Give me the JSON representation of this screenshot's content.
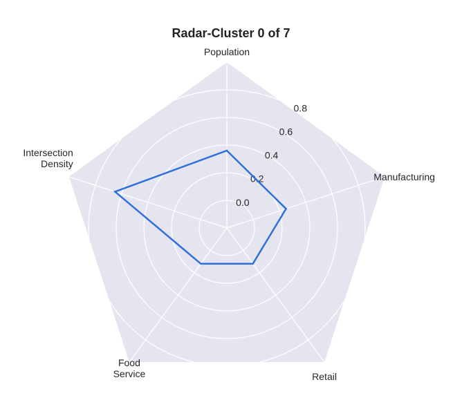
{
  "chart_data": {
    "type": "radar",
    "title": "Radar-Cluster 0 of 7",
    "axes": [
      "Population",
      "Manufacturing",
      "Retail",
      "Food Service",
      "Intersection Density"
    ],
    "axis_label_lines": [
      [
        "Population"
      ],
      [
        "Manufacturing"
      ],
      [
        "Retail"
      ],
      [
        "Food",
        "Service"
      ],
      [
        "Intersection",
        "Density"
      ]
    ],
    "series": [
      {
        "values": [
          0.36,
          0.25,
          0.12,
          0.12,
          0.65
        ]
      }
    ],
    "r_ticks": [
      0.0,
      0.2,
      0.4,
      0.6,
      0.8
    ],
    "r_range": [
      -0.2,
      1.0
    ],
    "grid": true,
    "colors": {
      "background": "#e5e5ef",
      "grid": "#ffffff",
      "line": "#2f6fdc"
    }
  }
}
